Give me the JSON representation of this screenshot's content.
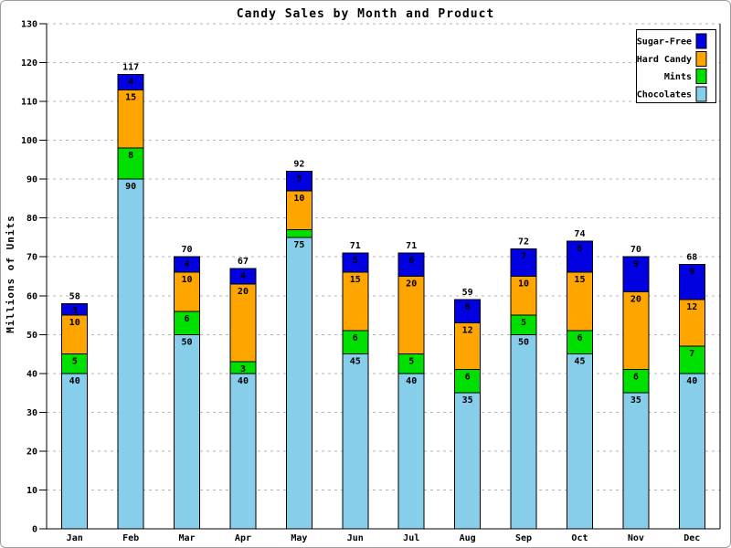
{
  "chart_data": {
    "type": "bar",
    "stacked": true,
    "title": "Candy Sales by Month and Product",
    "xlabel": "",
    "ylabel": "Millions of Units",
    "categories": [
      "Jan",
      "Feb",
      "Mar",
      "Apr",
      "May",
      "Jun",
      "Jul",
      "Aug",
      "Sep",
      "Oct",
      "Nov",
      "Dec"
    ],
    "series": [
      {
        "name": "Chocolates",
        "color": "#87CEEB",
        "values": [
          40,
          90,
          50,
          40,
          75,
          45,
          40,
          35,
          50,
          45,
          35,
          40
        ]
      },
      {
        "name": "Mints",
        "color": "#00E000",
        "values": [
          5,
          8,
          6,
          3,
          2,
          6,
          5,
          6,
          5,
          6,
          6,
          7
        ]
      },
      {
        "name": "Hard Candy",
        "color": "#FFA500",
        "values": [
          10,
          15,
          10,
          20,
          10,
          15,
          20,
          12,
          10,
          15,
          20,
          12
        ]
      },
      {
        "name": "Sugar-Free",
        "color": "#0000E0",
        "values": [
          3,
          4,
          4,
          4,
          5,
          5,
          6,
          6,
          7,
          8,
          9,
          9
        ]
      }
    ],
    "totals": [
      58,
      117,
      70,
      67,
      92,
      71,
      71,
      59,
      72,
      74,
      70,
      68
    ],
    "ylim": [
      0,
      130
    ],
    "yticks": [
      0,
      10,
      20,
      30,
      40,
      50,
      60,
      70,
      80,
      90,
      100,
      110,
      120,
      130
    ],
    "grid": true,
    "legend": {
      "position": "top-right",
      "entries": [
        {
          "label": "Sugar-Free",
          "color": "#0000E0"
        },
        {
          "label": "Hard Candy",
          "color": "#FFA500"
        },
        {
          "label": "Mints",
          "color": "#00E000"
        },
        {
          "label": "Chocolates",
          "color": "#87CEEB"
        }
      ]
    }
  },
  "colors": {
    "axis": "#000000",
    "grid": "#b3b3b3",
    "value_label": "#000000",
    "background": "#ffffff",
    "frame_border": "#9e9e9e"
  }
}
